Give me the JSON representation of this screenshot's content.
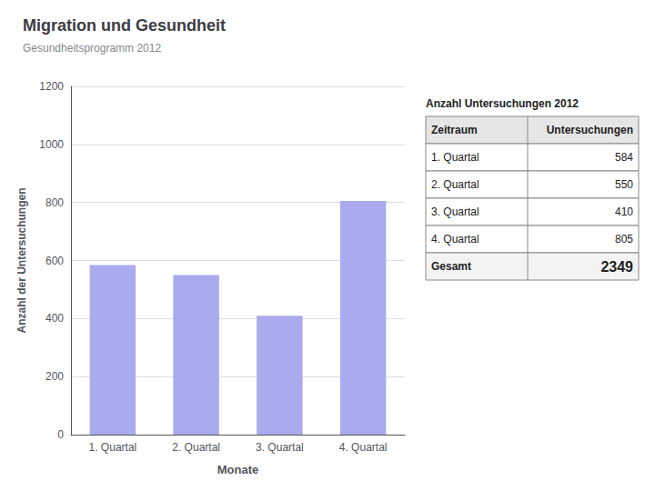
{
  "chart_data": [
    {
      "type": "bar",
      "title": "Migration und Gesundheit",
      "subtitle": "Gesundheitsprogramm 2012",
      "categories": [
        "1. Quartal",
        "2. Quartal",
        "3. Quartal",
        "4. Quartal"
      ],
      "values": [
        584,
        550,
        410,
        805
      ],
      "color": "#aaaaee",
      "xlabel": "Monate",
      "ylabel": "Anzahl der Untersuchungen",
      "ylim": [
        0,
        1200
      ],
      "yticks": [
        0,
        200,
        400,
        600,
        800,
        1000,
        1200
      ],
      "grid": true
    },
    {
      "type": "table",
      "title": "Anzahl Untersuchungen 2012",
      "columns": [
        "Zeitraum",
        "Untersuchungen"
      ],
      "rows": [
        [
          "1. Quartal",
          "584"
        ],
        [
          "2. Quartal",
          "550"
        ],
        [
          "3. Quartal",
          "410"
        ],
        [
          "4. Quartal",
          "805"
        ]
      ],
      "total": [
        "Gesamt",
        "2349"
      ]
    }
  ]
}
